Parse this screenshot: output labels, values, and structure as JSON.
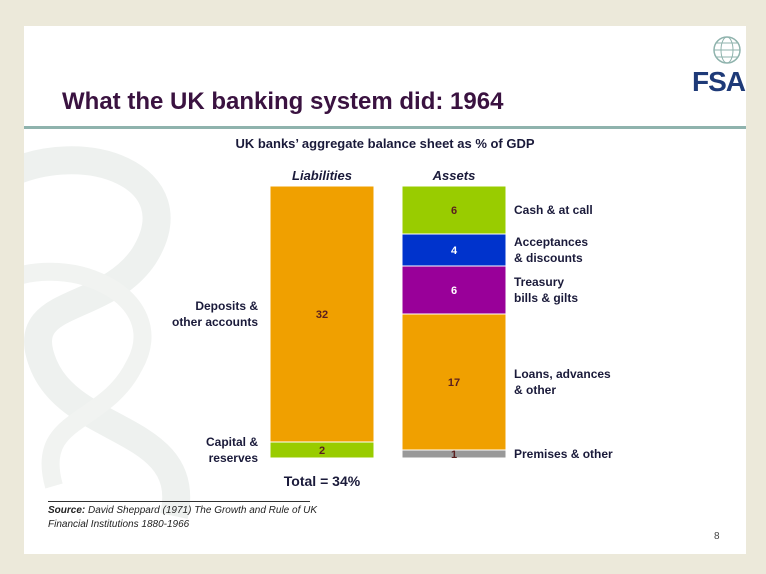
{
  "slide": {
    "title": "What the UK banking system did: 1964",
    "logo_text": "FSA",
    "source_label": "Source:",
    "source_text": " David Sheppard  (1971) The Growth and Rule of UK Financial Institutions 1880-1966",
    "page_number": "8",
    "colors": {
      "title": "#3a1240",
      "rule": "#8fb3ad",
      "logo": "#1e3a78"
    }
  },
  "chart_data": {
    "type": "bar",
    "stacked": true,
    "title": "UK banks’ aggregate balance sheet as % of GDP",
    "total_label": "Total = 34%",
    "bars": [
      {
        "name": "Liabilities",
        "label_side": "left",
        "segments": [
          {
            "label": "Capital & reserves",
            "value": 2,
            "color": "#99cc00",
            "value_color": "#5a1f1f"
          },
          {
            "label": "Deposits & other accounts",
            "value": 32,
            "color": "#f0a000",
            "value_color": "#5a1f1f"
          }
        ]
      },
      {
        "name": "Assets",
        "label_side": "right",
        "segments": [
          {
            "label": "Premises & other",
            "value": 1,
            "color": "#999999",
            "value_color": "#5a1f1f"
          },
          {
            "label": "Loans, advances & other",
            "value": 17,
            "color": "#f0a000",
            "value_color": "#5a1f1f"
          },
          {
            "label": "Treasury bills & gilts",
            "value": 6,
            "color": "#990099",
            "value_color": "#ffffff"
          },
          {
            "label": "Acceptances & discounts",
            "value": 4,
            "color": "#0033cc",
            "value_color": "#ffffff"
          },
          {
            "label": "Cash & at call",
            "value": 6,
            "color": "#99cc00",
            "value_color": "#5a1f1f"
          }
        ]
      }
    ],
    "ylim": [
      0,
      34
    ],
    "grid": false
  }
}
